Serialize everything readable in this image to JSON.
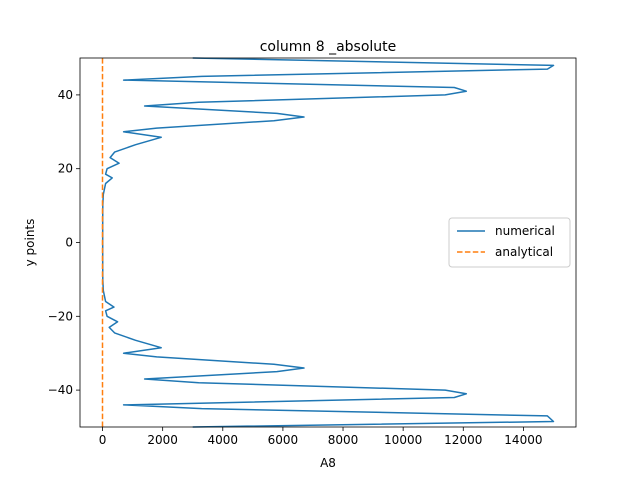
{
  "chart_data": {
    "type": "line",
    "title": "column 8 _absolute",
    "xlabel": "A8",
    "ylabel": "y points",
    "xlim": [
      -750,
      15750
    ],
    "ylim": [
      -50,
      50
    ],
    "x_ticks": [
      0,
      2000,
      4000,
      6000,
      8000,
      10000,
      12000,
      14000
    ],
    "y_ticks": [
      -40,
      -20,
      0,
      20,
      40
    ],
    "grid": false,
    "legend": {
      "placement": "center-right",
      "entries": [
        "numerical",
        "analytical"
      ]
    },
    "series": [
      {
        "name": "numerical",
        "color": "#1f77b4",
        "style": "solid",
        "points": [
          [
            3000,
            -50
          ],
          [
            15000,
            -48.5
          ],
          [
            14800,
            -47
          ],
          [
            3300,
            -45
          ],
          [
            700,
            -44
          ],
          [
            11700,
            -42
          ],
          [
            12100,
            -41
          ],
          [
            11400,
            -40
          ],
          [
            3200,
            -38
          ],
          [
            1400,
            -37
          ],
          [
            5800,
            -35
          ],
          [
            6700,
            -34
          ],
          [
            5700,
            -33
          ],
          [
            1800,
            -31
          ],
          [
            700,
            -30
          ],
          [
            1950,
            -28.5
          ],
          [
            1100,
            -26.5
          ],
          [
            400,
            -24.5
          ],
          [
            220,
            -23
          ],
          [
            500,
            -21.5
          ],
          [
            150,
            -20
          ],
          [
            100,
            -18.5
          ],
          [
            380,
            -17.5
          ],
          [
            100,
            -16
          ],
          [
            25,
            -13
          ],
          [
            10,
            -10
          ],
          [
            5,
            -5
          ],
          [
            5,
            0
          ],
          [
            5,
            5
          ],
          [
            10,
            10
          ],
          [
            25,
            13
          ],
          [
            100,
            16
          ],
          [
            320,
            17.5
          ],
          [
            100,
            18.5
          ],
          [
            150,
            20
          ],
          [
            550,
            21.5
          ],
          [
            250,
            23
          ],
          [
            400,
            24.5
          ],
          [
            1100,
            26.5
          ],
          [
            1950,
            28.5
          ],
          [
            700,
            30
          ],
          [
            1800,
            31
          ],
          [
            5700,
            33
          ],
          [
            6700,
            34
          ],
          [
            5800,
            35
          ],
          [
            1400,
            37
          ],
          [
            3200,
            38
          ],
          [
            11400,
            40
          ],
          [
            12100,
            41
          ],
          [
            11700,
            42
          ],
          [
            700,
            44
          ],
          [
            3300,
            45
          ],
          [
            14800,
            47
          ],
          [
            15000,
            48
          ],
          [
            3000,
            50
          ]
        ]
      },
      {
        "name": "analytical",
        "color": "#ff7f0e",
        "style": "dashed",
        "points": [
          [
            0,
            -50
          ],
          [
            0,
            50
          ]
        ]
      }
    ]
  }
}
